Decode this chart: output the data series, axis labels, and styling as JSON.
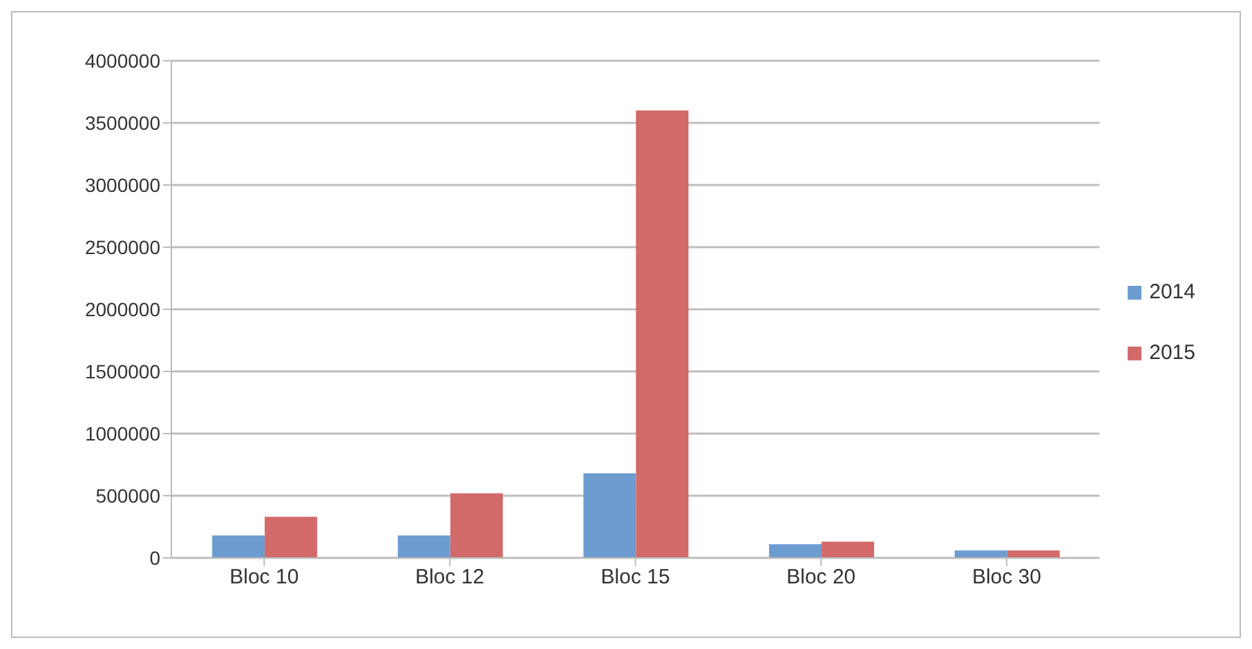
{
  "chart_data": {
    "type": "bar",
    "categories": [
      "Bloc 10",
      "Bloc 12",
      "Bloc 15",
      "Bloc 20",
      "Bloc 30"
    ],
    "series": [
      {
        "name": "2014",
        "color": "#6d9dd0",
        "values": [
          180000,
          180000,
          680000,
          110000,
          60000
        ]
      },
      {
        "name": "2015",
        "color": "#d26a6a",
        "values": [
          330000,
          520000,
          3600000,
          130000,
          60000
        ]
      }
    ],
    "ylim": [
      0,
      4000000
    ],
    "yticks": [
      0,
      500000,
      1000000,
      1500000,
      2000000,
      2500000,
      3000000,
      3500000,
      4000000
    ],
    "grid": "y",
    "legend": "right"
  }
}
